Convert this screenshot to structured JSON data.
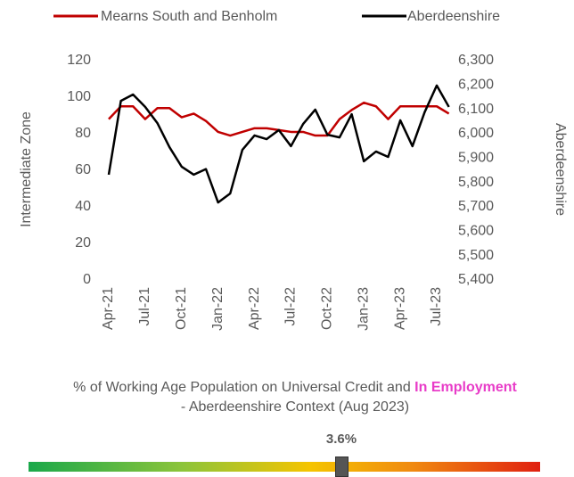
{
  "chart_data": {
    "type": "line",
    "categories": [
      "Apr-21",
      null,
      null,
      "Jul-21",
      null,
      null,
      "Oct-21",
      null,
      null,
      "Jan-22",
      null,
      null,
      "Apr-22",
      null,
      null,
      "Jul-22",
      null,
      null,
      "Oct-22",
      null,
      null,
      "Jan-23",
      null,
      null,
      "Apr-23",
      null,
      null,
      "Jul-23",
      null
    ],
    "series": [
      {
        "name": "Mearns South and Benholm",
        "color": "#c00000",
        "axis": "y",
        "values": [
          88,
          95,
          95,
          88,
          94,
          94,
          89,
          91,
          87,
          81,
          79,
          81,
          83,
          83,
          82,
          81,
          81,
          79,
          79,
          88,
          93,
          97,
          95,
          88,
          95,
          95,
          95,
          95,
          91
        ]
      },
      {
        "name": "Aberdeenshire",
        "color": "#000000",
        "axis": "y2",
        "values": [
          5832,
          6135,
          6161,
          6110,
          6044,
          5945,
          5865,
          5832,
          5855,
          5718,
          5755,
          5934,
          5993,
          5978,
          6015,
          5949,
          6040,
          6099,
          5996,
          5985,
          6080,
          5887,
          5927,
          5905,
          6055,
          5949,
          6088,
          6198,
          6110
        ]
      }
    ],
    "ylabel": "Intermediate Zone",
    "y2label": "Aberdeenshire",
    "ylim": [
      0,
      120
    ],
    "yticks": [
      0,
      20,
      40,
      60,
      80,
      100,
      120
    ],
    "y2lim": [
      5400,
      6300
    ],
    "y2ticks": [
      {
        "value": 5400,
        "label": "5,400"
      },
      {
        "value": 5500,
        "label": "5,500"
      },
      {
        "value": 5600,
        "label": "5,600"
      },
      {
        "value": 5700,
        "label": "5,700"
      },
      {
        "value": 5800,
        "label": "5,800"
      },
      {
        "value": 5900,
        "label": "5,900"
      },
      {
        "value": 6000,
        "label": "6,000"
      },
      {
        "value": 6100,
        "label": "6,100"
      },
      {
        "value": 6200,
        "label": "6,200"
      },
      {
        "value": 6300,
        "label": "6,300"
      }
    ],
    "grid": false,
    "legend": "top"
  },
  "context": {
    "title_parts": [
      "% of Working Age Population on Universal Credit and ",
      "In Employment",
      " - Aberdeenshire Context (Aug 2023)"
    ],
    "value": "3.6%"
  }
}
